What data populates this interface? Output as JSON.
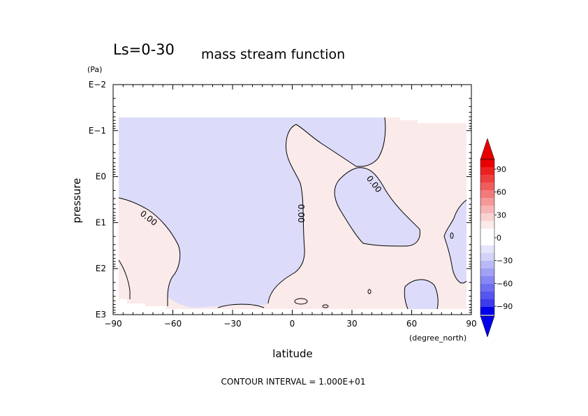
{
  "chart_data": {
    "type": "heatmap",
    "title_left": "Ls=0-30",
    "title_right": "mass stream function",
    "xlabel": "latitude",
    "xunit": "(degree_north)",
    "ylabel": "pressure",
    "yunit": "(Pa)",
    "xlim": [
      -90,
      90
    ],
    "x_ticks": [
      -90,
      -60,
      -30,
      0,
      30,
      60,
      90
    ],
    "x_tick_labels": [
      "−90",
      "−60",
      "−30",
      "0",
      "30",
      "60",
      "90"
    ],
    "y_scale": "log",
    "y_ticks": [
      0.01,
      0.1,
      1,
      10,
      100,
      1000
    ],
    "y_tick_labels": [
      "E−2",
      "E−1",
      "E0",
      "E1",
      "E2",
      "E3"
    ],
    "contour_labels": [
      {
        "text": "0.00",
        "x": -73,
        "log10p": 0.95
      },
      {
        "text": "0.00",
        "x": 3,
        "log10p": 0.8
      },
      {
        "text": "0.00",
        "x": 40,
        "log10p": 0.2
      }
    ],
    "regions": [
      {
        "sign": "negative",
        "description": "main cell",
        "lon_range": [
          -88,
          1
        ]
      },
      {
        "sign": "positive",
        "description": "right cell",
        "lon_range": [
          -10,
          88
        ]
      },
      {
        "sign": "negative",
        "description": "upper-right",
        "lon_range": [
          32,
          50
        ]
      },
      {
        "sign": "negative",
        "description": "mid-right",
        "lon_range": [
          18,
          62
        ]
      },
      {
        "sign": "positive",
        "description": "lower-left",
        "lon_range": [
          -88,
          -62
        ]
      }
    ],
    "colorbar": {
      "tick_labels": [
        "90",
        "60",
        "30",
        "0",
        "−30",
        "−60",
        "−90"
      ],
      "ticks": [
        90,
        60,
        30,
        0,
        -30,
        -60,
        -90
      ],
      "colors_pos": [
        "#fbeaea",
        "#f9d2d2",
        "#f7b5b5",
        "#f59898",
        "#f37a7a",
        "#f15c5c",
        "#ef3e3e",
        "#ed2020",
        "#e80000"
      ],
      "colors_neg": [
        "#e4e4fb",
        "#d3d3f9",
        "#b9b9f7",
        "#a0a0f5",
        "#8787f3",
        "#6e6ef1",
        "#5555ef",
        "#3c3ced",
        "#0000e8"
      ],
      "white_band": "#ffffff"
    },
    "fill_colors": {
      "negative": "#dcdcfa",
      "positive": "#fbeaea"
    },
    "footer": "CONTOUR INTERVAL = 1.000E+01"
  }
}
